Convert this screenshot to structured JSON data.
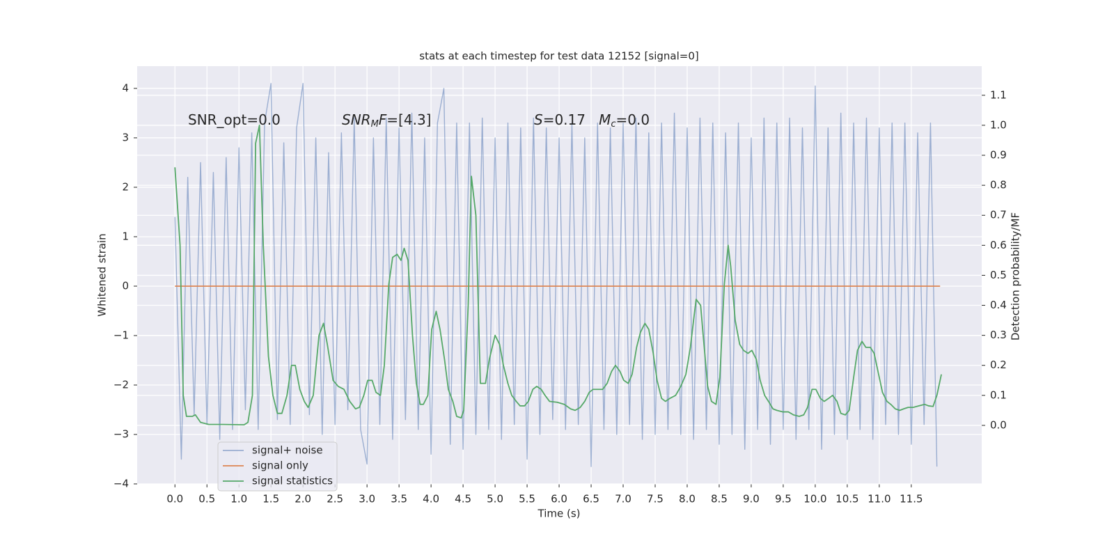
{
  "chart_data": {
    "type": "line",
    "title": "stats at each timestep for test data 12152 [signal=0]",
    "xlabel": "Time (s)",
    "ylabel": "Whitened strain",
    "y2label": "Detection probability/MF",
    "xlim": [
      -0.59,
      12.6
    ],
    "ylim": [
      -4.0,
      4.45
    ],
    "y2lim": [
      -0.195,
      1.197
    ],
    "xticks": [
      {
        "value": 0,
        "label": "0.0"
      },
      0.5,
      {
        "value": 1,
        "label": "1.0"
      },
      1.5,
      {
        "value": 2,
        "label": "2.0"
      },
      2.5,
      {
        "value": 3,
        "label": "3.0"
      },
      3.5,
      {
        "value": 4,
        "label": "4.0"
      },
      4.5,
      {
        "value": 5,
        "label": "5.0"
      },
      5.5,
      {
        "value": 6,
        "label": "6.0"
      },
      6.5,
      {
        "value": 7,
        "label": "7.0"
      },
      7.5,
      {
        "value": 8,
        "label": "8.0"
      },
      8.5,
      {
        "value": 9,
        "label": "9.0"
      },
      9.5,
      {
        "value": 10,
        "label": "10.0"
      },
      10.5,
      {
        "value": 11,
        "label": "11.0"
      },
      11.5
    ],
    "yticks": [
      {
        "value": -4,
        "label": "−4"
      },
      {
        "value": -3,
        "label": "−3"
      },
      {
        "value": -2,
        "label": "−2"
      },
      {
        "value": -1,
        "label": "−1"
      },
      0,
      1,
      2,
      3,
      4
    ],
    "y2ticks": [
      {
        "value": 0,
        "label": "0.0"
      },
      0.1,
      0.2,
      0.3,
      0.4,
      0.5,
      0.6,
      0.7,
      0.8,
      0.9,
      {
        "value": 1,
        "label": "1.0"
      },
      1.1
    ],
    "grid": true,
    "legend": "lower left",
    "background": "#eaeaf2",
    "annotations": [
      [
        {
          "text": "SNR_opt=0.0",
          "style": "normal"
        }
      ],
      [
        {
          "text": "SNR",
          "style": "italic"
        },
        {
          "text": "M",
          "style": "sub"
        },
        {
          "text": "F",
          "style": "italic"
        },
        {
          "text": "=[4.3]",
          "style": "normal"
        }
      ],
      [
        {
          "text": "S",
          "style": "italic"
        },
        {
          "text": "=0.17   ",
          "style": "normal"
        },
        {
          "text": "M",
          "style": "italic"
        },
        {
          "text": "c",
          "style": "sub"
        },
        {
          "text": "=0.0",
          "style": "normal"
        }
      ]
    ],
    "series": [
      {
        "name": "signal+ noise",
        "color": "#4c72b0",
        "alpha": 0.5,
        "x": [
          0.0,
          0.1,
          0.2,
          0.3,
          0.4,
          0.5,
          0.6,
          0.7,
          0.8,
          0.9,
          1.0,
          1.1,
          1.2,
          1.3,
          1.4,
          1.5,
          1.6,
          1.7,
          1.8,
          1.9,
          2.0,
          2.1,
          2.2,
          2.3,
          2.4,
          2.5,
          2.6,
          2.7,
          2.8,
          2.9,
          3.0,
          3.1,
          3.2,
          3.3,
          3.4,
          3.5,
          3.6,
          3.7,
          3.8,
          3.9,
          4.0,
          4.1,
          4.2,
          4.3,
          4.4,
          4.5,
          4.6,
          4.7,
          4.8,
          4.9,
          5.0,
          5.1,
          5.2,
          5.3,
          5.4,
          5.5,
          5.6,
          5.7,
          5.8,
          5.9,
          6.0,
          6.1,
          6.2,
          6.3,
          6.4,
          6.5,
          6.6,
          6.7,
          6.8,
          6.9,
          7.0,
          7.1,
          7.2,
          7.3,
          7.4,
          7.5,
          7.6,
          7.7,
          7.8,
          7.9,
          8.0,
          8.1,
          8.2,
          8.3,
          8.4,
          8.5,
          8.6,
          8.7,
          8.8,
          8.9,
          9.0,
          9.1,
          9.2,
          9.3,
          9.4,
          9.5,
          9.6,
          9.7,
          9.8,
          9.9,
          10.0,
          10.1,
          10.2,
          10.3,
          10.4,
          10.5,
          10.6,
          10.7,
          10.8,
          10.9,
          11.0,
          11.1,
          11.2,
          11.3,
          11.4,
          11.5,
          11.6,
          11.7,
          11.8,
          11.9
        ],
        "values": [
          1.4,
          -3.5,
          2.2,
          -2.6,
          2.5,
          -2.8,
          2.3,
          -3.1,
          2.6,
          -2.9,
          2.8,
          -2.5,
          3.1,
          -2.9,
          3.3,
          4.1,
          -2.7,
          2.9,
          -2.8,
          3.2,
          4.1,
          -2.6,
          3.0,
          -3.0,
          2.7,
          -2.8,
          3.1,
          -2.5,
          3.4,
          -2.9,
          -3.6,
          3.0,
          -2.8,
          3.4,
          -3.1,
          3.2,
          -2.7,
          3.5,
          -2.9,
          3.0,
          -3.4,
          3.3,
          4.0,
          -3.2,
          3.3,
          -3.3,
          3.3,
          -3.0,
          3.4,
          -2.9,
          3.0,
          -3.1,
          3.3,
          -2.8,
          3.2,
          -3.5,
          3.4,
          -3.0,
          3.2,
          -2.7,
          3.0,
          -2.9,
          3.3,
          -2.8,
          3.0,
          -3.65,
          3.3,
          -2.9,
          3.2,
          -3.0,
          3.3,
          -2.8,
          3.4,
          -3.1,
          3.1,
          -3.0,
          3.3,
          -2.9,
          3.5,
          -3.0,
          3.2,
          -3.1,
          3.4,
          -2.9,
          3.3,
          -3.2,
          3.1,
          -3.0,
          3.3,
          -3.3,
          3.0,
          -2.9,
          3.4,
          -3.2,
          3.3,
          -2.9,
          3.4,
          -3.1,
          3.2,
          -2.9,
          4.05,
          -3.3,
          3.2,
          -3.0,
          3.5,
          -3.1,
          3.3,
          -2.9,
          3.4,
          -3.1,
          3.2,
          -2.8,
          3.3,
          -3.0,
          3.3,
          -3.2,
          3.1,
          -2.8,
          3.3,
          -3.65
        ]
      },
      {
        "name": "signal only",
        "color": "#dd8452",
        "alpha": 1,
        "x": [
          0.0,
          11.95
        ],
        "values": [
          0,
          0
        ]
      },
      {
        "name": "signal statistics",
        "color": "#55a868",
        "alpha": 1,
        "axis": "y2",
        "x": [
          0.0,
          0.08,
          0.13,
          0.18,
          0.27,
          0.32,
          0.4,
          0.53,
          0.75,
          1.08,
          1.14,
          1.21,
          1.26,
          1.32,
          1.38,
          1.46,
          1.53,
          1.6,
          1.67,
          1.75,
          1.82,
          1.88,
          1.95,
          2.02,
          2.08,
          2.16,
          2.25,
          2.32,
          2.38,
          2.47,
          2.55,
          2.64,
          2.73,
          2.82,
          2.88,
          2.95,
          3.01,
          3.08,
          3.14,
          3.21,
          3.27,
          3.34,
          3.4,
          3.47,
          3.53,
          3.58,
          3.64,
          3.71,
          3.77,
          3.83,
          3.88,
          3.95,
          4.01,
          4.08,
          4.14,
          4.21,
          4.27,
          4.34,
          4.4,
          4.47,
          4.51,
          4.58,
          4.63,
          4.7,
          4.77,
          4.85,
          4.91,
          5.0,
          5.07,
          5.13,
          5.2,
          5.26,
          5.33,
          5.39,
          5.46,
          5.52,
          5.59,
          5.65,
          5.72,
          5.78,
          5.85,
          5.97,
          6.08,
          6.18,
          6.25,
          6.33,
          6.4,
          6.47,
          6.53,
          6.62,
          6.68,
          6.75,
          6.82,
          6.88,
          6.95,
          7.01,
          7.08,
          7.14,
          7.21,
          7.27,
          7.34,
          7.4,
          7.47,
          7.53,
          7.6,
          7.66,
          7.73,
          7.82,
          7.9,
          7.98,
          8.05,
          8.1,
          8.14,
          8.21,
          8.25,
          8.32,
          8.38,
          8.45,
          8.51,
          8.58,
          8.64,
          8.68,
          8.75,
          8.82,
          8.88,
          8.95,
          9.01,
          9.08,
          9.14,
          9.21,
          9.27,
          9.34,
          9.4,
          9.49,
          9.58,
          9.66,
          9.75,
          9.82,
          9.88,
          9.95,
          10.01,
          10.08,
          10.14,
          10.21,
          10.27,
          10.34,
          10.4,
          10.47,
          10.53,
          10.6,
          10.66,
          10.73,
          10.79,
          10.86,
          10.92,
          10.99,
          11.05,
          11.12,
          11.18,
          11.25,
          11.32,
          11.38,
          11.45,
          11.53,
          11.62,
          11.71,
          11.77,
          11.84,
          11.9,
          11.97
        ],
        "values": [
          0.86,
          0.6,
          0.1,
          0.03,
          0.03,
          0.035,
          0.01,
          0.003,
          0.003,
          0.002,
          0.01,
          0.1,
          0.94,
          1.0,
          0.6,
          0.23,
          0.1,
          0.04,
          0.04,
          0.1,
          0.2,
          0.2,
          0.12,
          0.08,
          0.06,
          0.1,
          0.3,
          0.34,
          0.27,
          0.15,
          0.13,
          0.12,
          0.08,
          0.055,
          0.06,
          0.1,
          0.15,
          0.15,
          0.11,
          0.1,
          0.2,
          0.47,
          0.56,
          0.57,
          0.55,
          0.59,
          0.55,
          0.3,
          0.14,
          0.07,
          0.07,
          0.1,
          0.32,
          0.38,
          0.32,
          0.22,
          0.12,
          0.08,
          0.03,
          0.025,
          0.05,
          0.4,
          0.83,
          0.7,
          0.14,
          0.14,
          0.22,
          0.3,
          0.27,
          0.2,
          0.14,
          0.1,
          0.08,
          0.065,
          0.065,
          0.08,
          0.12,
          0.13,
          0.12,
          0.1,
          0.08,
          0.077,
          0.07,
          0.055,
          0.05,
          0.06,
          0.08,
          0.11,
          0.12,
          0.12,
          0.12,
          0.14,
          0.18,
          0.2,
          0.18,
          0.15,
          0.14,
          0.17,
          0.26,
          0.31,
          0.34,
          0.32,
          0.24,
          0.15,
          0.09,
          0.08,
          0.09,
          0.1,
          0.13,
          0.17,
          0.26,
          0.35,
          0.42,
          0.4,
          0.3,
          0.13,
          0.08,
          0.07,
          0.16,
          0.47,
          0.6,
          0.53,
          0.35,
          0.27,
          0.25,
          0.24,
          0.25,
          0.22,
          0.15,
          0.1,
          0.08,
          0.055,
          0.05,
          0.045,
          0.045,
          0.035,
          0.03,
          0.035,
          0.06,
          0.12,
          0.12,
          0.09,
          0.08,
          0.09,
          0.1,
          0.08,
          0.04,
          0.035,
          0.05,
          0.16,
          0.25,
          0.28,
          0.26,
          0.26,
          0.24,
          0.17,
          0.11,
          0.08,
          0.07,
          0.055,
          0.05,
          0.055,
          0.06,
          0.06,
          0.065,
          0.07,
          0.065,
          0.063,
          0.1,
          0.17
        ]
      }
    ]
  }
}
